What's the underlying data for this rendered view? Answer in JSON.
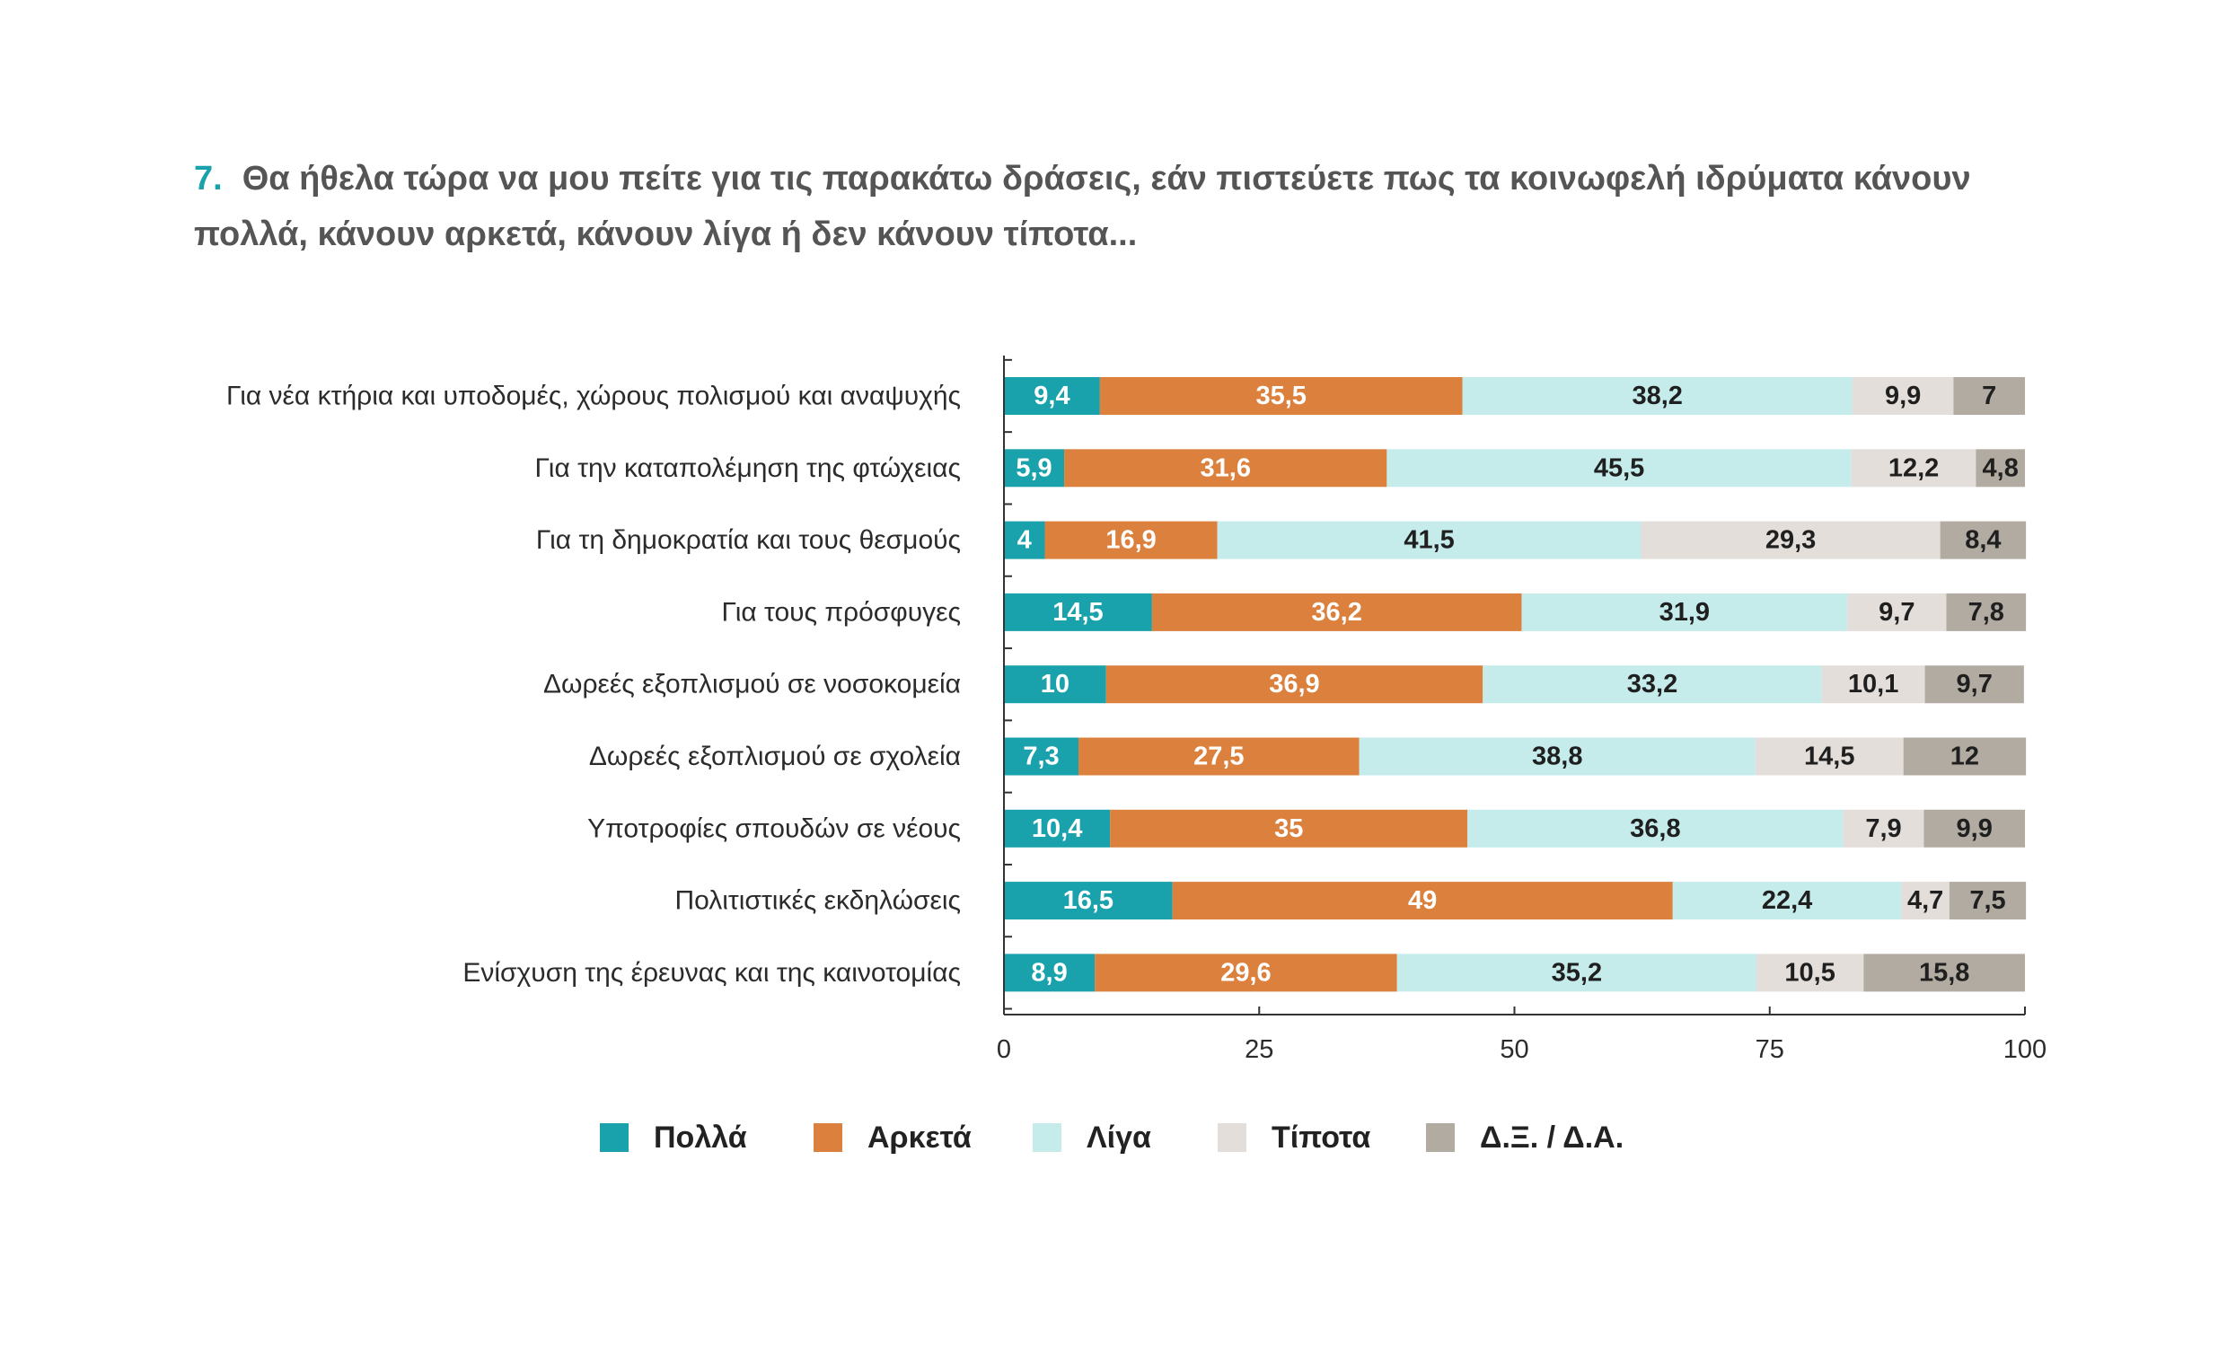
{
  "title": {
    "number": "7.",
    "text": "Θα ήθελα τώρα να μου πείτε για τις παρακάτω δράσεις, εάν πιστεύετε πως τα κοινωφελή ιδρύματα κάνουν πολλά, κάνουν αρκετά, κάνουν λίγα ή δεν κάνουν τίποτα..."
  },
  "chart_data": {
    "type": "bar",
    "orientation": "horizontal",
    "stacked": true,
    "categories": [
      "Για νέα κτήρια και υποδομές, χώρους πολισμού και αναψυχής",
      "Για την καταπολέμηση της φτώχειας",
      "Για τη δημοκρατία και τους θεσμούς",
      "Για τους πρόσφυγες",
      "Δωρεές εξοπλισμού σε νοσοκομεία",
      "Δωρεές εξοπλισμού σε σχολεία",
      "Υποτροφίες σπουδών σε νέους",
      "Πολιτιστικές εκδηλώσεις",
      "Ενίσχυση της έρευνας και της καινοτομίας"
    ],
    "series": [
      {
        "name": "Πολλά",
        "color": "#19a2ac",
        "label_color": "#ffffff",
        "values": [
          9.4,
          5.9,
          4,
          14.5,
          10,
          7.3,
          10.4,
          16.5,
          8.9
        ],
        "labels": [
          "9,4",
          "5,9",
          "4",
          "14,5",
          "10",
          "7,3",
          "10,4",
          "16,5",
          "8,9"
        ]
      },
      {
        "name": "Αρκετά",
        "color": "#db813d",
        "label_color": "#ffffff",
        "values": [
          35.5,
          31.6,
          16.9,
          36.2,
          36.9,
          27.5,
          35,
          49,
          29.6
        ],
        "labels": [
          "35,5",
          "31,6",
          "16,9",
          "36,2",
          "36,9",
          "27,5",
          "35",
          "49",
          "29,6"
        ]
      },
      {
        "name": "Λίγα",
        "color": "#c5ebeb",
        "label_color": "#1f1f1f",
        "values": [
          38.2,
          45.5,
          41.5,
          31.9,
          33.2,
          38.8,
          36.8,
          22.4,
          35.2
        ],
        "labels": [
          "38,2",
          "45,5",
          "41,5",
          "31,9",
          "33,2",
          "38,8",
          "36,8",
          "22,4",
          "35,2"
        ]
      },
      {
        "name": "Τίποτα",
        "color": "#e3deda",
        "label_color": "#1f1f1f",
        "values": [
          9.9,
          12.2,
          29.3,
          9.7,
          10.1,
          14.5,
          7.9,
          4.7,
          10.5
        ],
        "labels": [
          "9,9",
          "12,2",
          "29,3",
          "9,7",
          "10,1",
          "14,5",
          "7,9",
          "4,7",
          "10,5"
        ]
      },
      {
        "name": "Δ.Ξ. / Δ.Α.",
        "color": "#b2aba2",
        "label_color": "#1f1f1f",
        "values": [
          7,
          4.8,
          8.4,
          7.8,
          9.7,
          12,
          9.9,
          7.5,
          15.8
        ],
        "labels": [
          "7",
          "4,8",
          "8,4",
          "7,8",
          "9,7",
          "12",
          "9,9",
          "7,5",
          "15,8"
        ]
      }
    ],
    "xlim": [
      0,
      100
    ],
    "xticks": [
      0,
      25,
      50,
      75,
      100
    ],
    "grid": false,
    "legend_position": "bottom"
  }
}
